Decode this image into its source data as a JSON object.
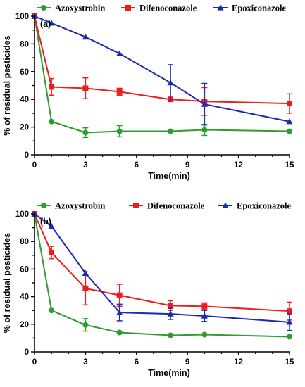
{
  "chart_data": [
    {
      "type": "line",
      "panel_label": "(a)",
      "xlabel": "Time(min)",
      "ylabel": "% of residual pesticides",
      "xlim": [
        0,
        15
      ],
      "ylim": [
        0,
        100
      ],
      "x_ticks": [
        "0",
        "3",
        "6",
        "9",
        "12",
        "15"
      ],
      "y_ticks": [
        "0",
        "20",
        "40",
        "60",
        "80",
        "100"
      ],
      "legend_position": "top",
      "series": [
        {
          "name": "Azoxystrobin",
          "color": "#2e9c2e",
          "marker": "circle",
          "points": [
            {
              "x": 0,
              "y": 100,
              "err": 0
            },
            {
              "x": 1,
              "y": 24,
              "err": 0
            },
            {
              "x": 3,
              "y": 16,
              "err": 3.5
            },
            {
              "x": 5,
              "y": 17,
              "err": 4
            },
            {
              "x": 8,
              "y": 17,
              "err": 0
            },
            {
              "x": 10,
              "y": 18,
              "err": 4
            },
            {
              "x": 15,
              "y": 17,
              "err": 0
            }
          ]
        },
        {
          "name": "Difenoconazole",
          "color": "#ee1c1c",
          "marker": "square",
          "points": [
            {
              "x": 0,
              "y": 100,
              "err": 0
            },
            {
              "x": 1,
              "y": 49,
              "err": 6
            },
            {
              "x": 3,
              "y": 48,
              "err": 7.5
            },
            {
              "x": 5,
              "y": 45.5,
              "err": 2.5
            },
            {
              "x": 8,
              "y": 40,
              "err": 0
            },
            {
              "x": 10,
              "y": 38.5,
              "err": 10
            },
            {
              "x": 15,
              "y": 37,
              "err": 7
            }
          ]
        },
        {
          "name": "Epoxiconazole",
          "color": "#1a2bb0",
          "marker": "triangle",
          "points": [
            {
              "x": 0,
              "y": 100,
              "err": 0
            },
            {
              "x": 1,
              "y": 95,
              "err": 0
            },
            {
              "x": 3,
              "y": 85,
              "err": 0
            },
            {
              "x": 5,
              "y": 73,
              "err": 0
            },
            {
              "x": 8,
              "y": 52,
              "err": 13
            },
            {
              "x": 10,
              "y": 36.5,
              "err": 15
            },
            {
              "x": 15,
              "y": 24,
              "err": 0
            }
          ]
        }
      ]
    },
    {
      "type": "line",
      "panel_label": "(b)",
      "xlabel": "Time(min)",
      "ylabel": "% of residual pesticides",
      "xlim": [
        0,
        15
      ],
      "ylim": [
        0,
        100
      ],
      "x_ticks": [
        "0",
        "3",
        "6",
        "9",
        "12",
        "15"
      ],
      "y_ticks": [
        "0",
        "20",
        "40",
        "60",
        "80",
        "100"
      ],
      "legend_position": "top",
      "series": [
        {
          "name": "Azoxystrobin",
          "color": "#2e9c2e",
          "marker": "circle",
          "points": [
            {
              "x": 0,
              "y": 100,
              "err": 0
            },
            {
              "x": 1,
              "y": 30,
              "err": 0
            },
            {
              "x": 3,
              "y": 19.5,
              "err": 4.5
            },
            {
              "x": 5,
              "y": 14,
              "err": 0
            },
            {
              "x": 8,
              "y": 12,
              "err": 0
            },
            {
              "x": 10,
              "y": 12.5,
              "err": 0
            },
            {
              "x": 15,
              "y": 11,
              "err": 0
            }
          ]
        },
        {
          "name": "Difenoconazole",
          "color": "#ee1c1c",
          "marker": "square",
          "points": [
            {
              "x": 0,
              "y": 100,
              "err": 0
            },
            {
              "x": 1,
              "y": 72,
              "err": 4.5
            },
            {
              "x": 3,
              "y": 46,
              "err": 12
            },
            {
              "x": 5,
              "y": 41,
              "err": 8
            },
            {
              "x": 8,
              "y": 33.5,
              "err": 3.5
            },
            {
              "x": 10,
              "y": 33,
              "err": 2.5
            },
            {
              "x": 15,
              "y": 29.5,
              "err": 6.5
            }
          ]
        },
        {
          "name": "Epoxiconazole",
          "color": "#1a2bb0",
          "marker": "triangle",
          "points": [
            {
              "x": 0,
              "y": 100,
              "err": 0
            },
            {
              "x": 1,
              "y": 91,
              "err": 0
            },
            {
              "x": 3,
              "y": 57,
              "err": 0
            },
            {
              "x": 5,
              "y": 28.5,
              "err": 6
            },
            {
              "x": 8,
              "y": 27.5,
              "err": 4
            },
            {
              "x": 10,
              "y": 26,
              "err": 4
            },
            {
              "x": 15,
              "y": 21.5,
              "err": 6
            }
          ]
        }
      ]
    }
  ]
}
